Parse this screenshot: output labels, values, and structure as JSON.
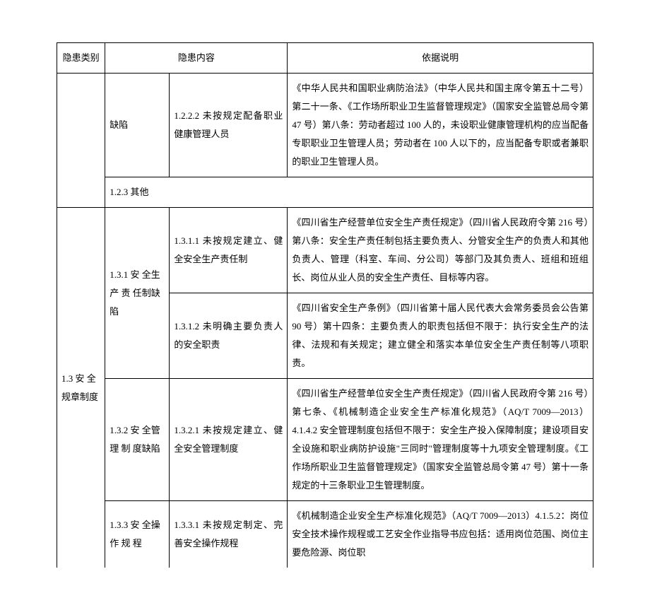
{
  "headers": {
    "col1": "隐患类别",
    "col2": "隐患内容",
    "col3": "依据说明"
  },
  "rows": {
    "r1": {
      "c2": "缺陷",
      "c3": "1.2.2.2 未按规定配备职业健康管理人员",
      "c4": "《中华人民共和国职业病防治法》（中华人民共和国主席令第五十二号）第二十一条、《工作场所职业卫生监督管理规定》（国家安全监管总局令第 47 号）第八条：劳动者超过 100 人的，未设职业健康管理机构的应当配备专职职业卫生管理人员；劳动者在 100 人以下的，应当配备专职或者兼职的职业卫生管理人员。"
    },
    "r2": {
      "c2": "1.2.3 其他"
    },
    "r3": {
      "c1": "1.3  安 全规章制度",
      "c2": "1.3.1  安 全生 产 责 任制缺陷",
      "c3": "1.3.1.1 未按规定建立、健全安全生产责任制",
      "c4": "《四川省生产经营单位安全生产责任规定》（四川省人民政府令第 216 号）第八条：安全生产责任制包括主要负责人、分管安全生产的负责人和其他负责人、管理（科室、车间、分公司）等部门及其负责人、班组和班组长、岗位从业人员的安全生产责任、目标等内容。"
    },
    "r4": {
      "c3": "1.3.1.2 未明确主要负责人的安全职责",
      "c4": "《四川省安全生产条例》（四川省第十届人民代表大会常务委员会公告第 90 号）第十四条：主要负责人的职责包括但不限于：执行安全生产的法律、法规和有关规定；建立健全和落实本单位安全生产责任制等八项职责。"
    },
    "r5": {
      "c2": "1.3.2  安 全管 理 制 度缺陷",
      "c3": "1.3.2.1 未按规定建立、健全安全管理制度",
      "c4": "《四川省生产经营单位安全生产责任规定》（四川省人民政府令第 216 号）第七条、《机械制造企业安全生产标准化规范》（AQ/T 7009—2013）4.1.4.2 安全管理制度包括但不限于：安全生产投入保障制度；建设项目安全设施和职业病防护设施\"三同时\"管理制度等十九项安全管理制度。《工作场所职业卫生监督管理规定》（国家安全监管总局令第 47 号）第十一条规定的十三条职业卫生管理制度。"
    },
    "r6": {
      "c2": "1.3.3  安 全操 作 规 程",
      "c3": "1.3.3.1 未按规定制定、完善安全操作规程",
      "c4": "《机械制造企业安全生产标准化规范》（AQ/T 7009—2013）4.1.5.2：岗位安全技术操作规程或工艺安全作业指导书应包括：适用岗位范围、岗位主要危险源、岗位职"
    }
  }
}
